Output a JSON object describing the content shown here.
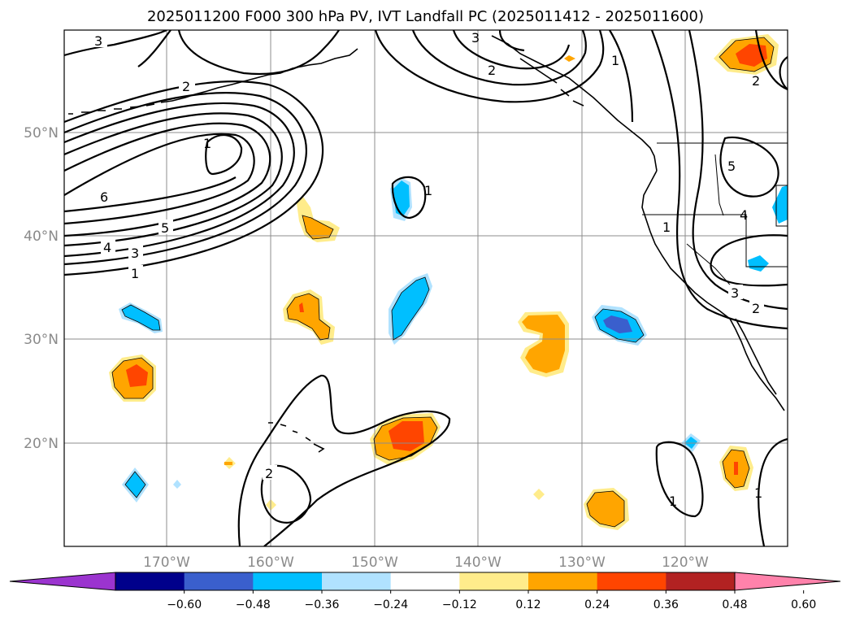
{
  "title": "2025011200 F000 300 hPa PV, IVT Landfall PC (2025011412 - 2025011600)",
  "map": {
    "lat_labels": [
      "50°N",
      "40°N",
      "30°N",
      "20°N"
    ],
    "lon_labels": [
      "170°W",
      "160°W",
      "150°W",
      "140°W",
      "130°W",
      "120°W"
    ],
    "gridlines": true
  },
  "contour_labels": [
    "3",
    "2",
    "2",
    "1",
    "6",
    "5",
    "4",
    "3",
    "1",
    "1",
    "3",
    "2",
    "1",
    "5",
    "4",
    "1",
    "3",
    "2",
    "2",
    "1",
    "1"
  ],
  "colorbar": {
    "tick_labels": [
      "−0.60",
      "−0.48",
      "−0.36",
      "−0.24",
      "−0.12",
      "0.12",
      "0.24",
      "0.36",
      "0.48",
      "0.60"
    ],
    "colors": [
      "#9b34cf",
      "#00008b",
      "#3a5fcd",
      "#00bfff",
      "#b0e2ff",
      "#ffffff",
      "#ffec8b",
      "#ffa500",
      "#ff4500",
      "#b22222",
      "#ff82ab"
    ]
  }
}
